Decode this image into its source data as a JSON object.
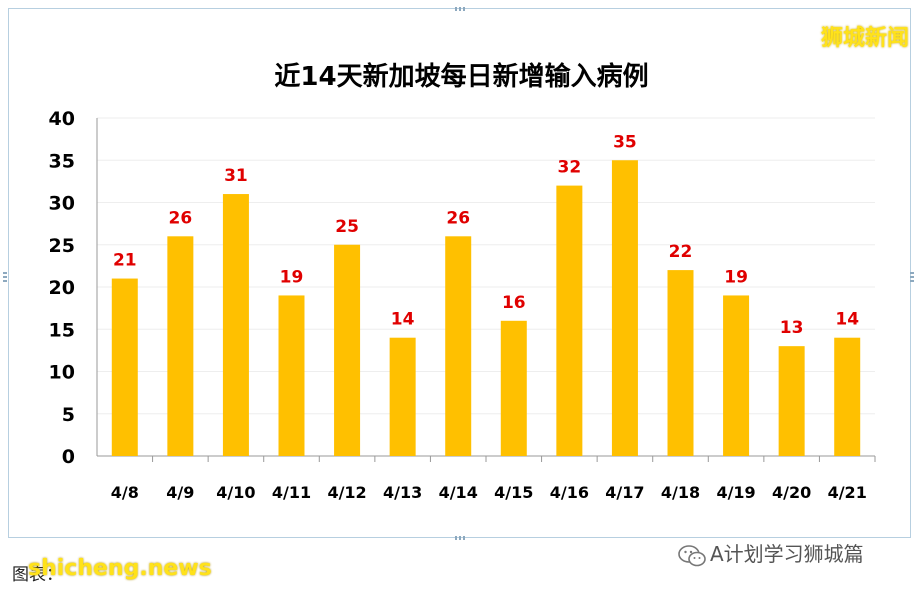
{
  "brand": "狮城新闻",
  "footer": {
    "source_prefix": "图表：",
    "overlay_site": "shicheng.news",
    "wechat_account": "A计划学习狮城篇"
  },
  "colors": {
    "bar": "#FFC000",
    "value_label": "#E00000",
    "grid": "#eeeeee",
    "axis": "#999999"
  },
  "chart_data": {
    "type": "bar",
    "title": "近14天新加坡每日新增输入病例",
    "categories": [
      "4/8",
      "4/9",
      "4/10",
      "4/11",
      "4/12",
      "4/13",
      "4/14",
      "4/15",
      "4/16",
      "4/17",
      "4/18",
      "4/19",
      "4/20",
      "4/21"
    ],
    "values": [
      21,
      26,
      31,
      19,
      25,
      14,
      26,
      16,
      32,
      35,
      22,
      19,
      13,
      14
    ],
    "ylim": [
      0,
      40
    ],
    "yticks": [
      0,
      5,
      10,
      15,
      20,
      25,
      30,
      35,
      40
    ],
    "grid": true,
    "data_labels": true,
    "legend": "none"
  }
}
